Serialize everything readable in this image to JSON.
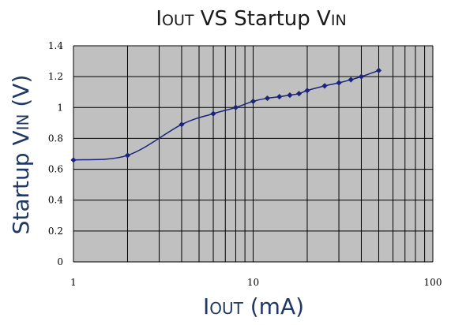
{
  "chart_data": {
    "type": "line",
    "title": {
      "main": "I",
      "sub": "OUT",
      "rest_main": " VS Startup V",
      "rest_sub": "IN"
    },
    "xlabel": {
      "main": "I",
      "sub": "OUT",
      "rest_main": " (mA)"
    },
    "ylabel": {
      "main": "Startup V",
      "sub": "IN",
      "rest_main": " (V)"
    },
    "x_scale": "log",
    "xlim": [
      1,
      100
    ],
    "ylim": [
      0,
      1.4
    ],
    "x_ticks": [
      1,
      10,
      100
    ],
    "x_tick_labels": [
      "1",
      "10",
      "100"
    ],
    "y_ticks": [
      0,
      0.2,
      0.4,
      0.6,
      0.8,
      1,
      1.2,
      1.4
    ],
    "y_tick_labels": [
      "0",
      "0.2",
      "0.4",
      "0.6",
      "0.8",
      "1",
      "1.2",
      "1.4"
    ],
    "grid": true,
    "legend": "none",
    "series": [
      {
        "color": "#1a237e",
        "x": [
          1,
          2,
          4,
          6,
          8,
          10,
          12,
          14,
          16,
          18,
          20,
          25,
          30,
          35,
          40,
          50
        ],
        "y": [
          0.66,
          0.69,
          0.89,
          0.96,
          1.0,
          1.04,
          1.06,
          1.07,
          1.08,
          1.09,
          1.11,
          1.14,
          1.16,
          1.18,
          1.2,
          1.24
        ]
      }
    ],
    "plot_background": "#c0c0c0",
    "grid_color": "#000000"
  }
}
